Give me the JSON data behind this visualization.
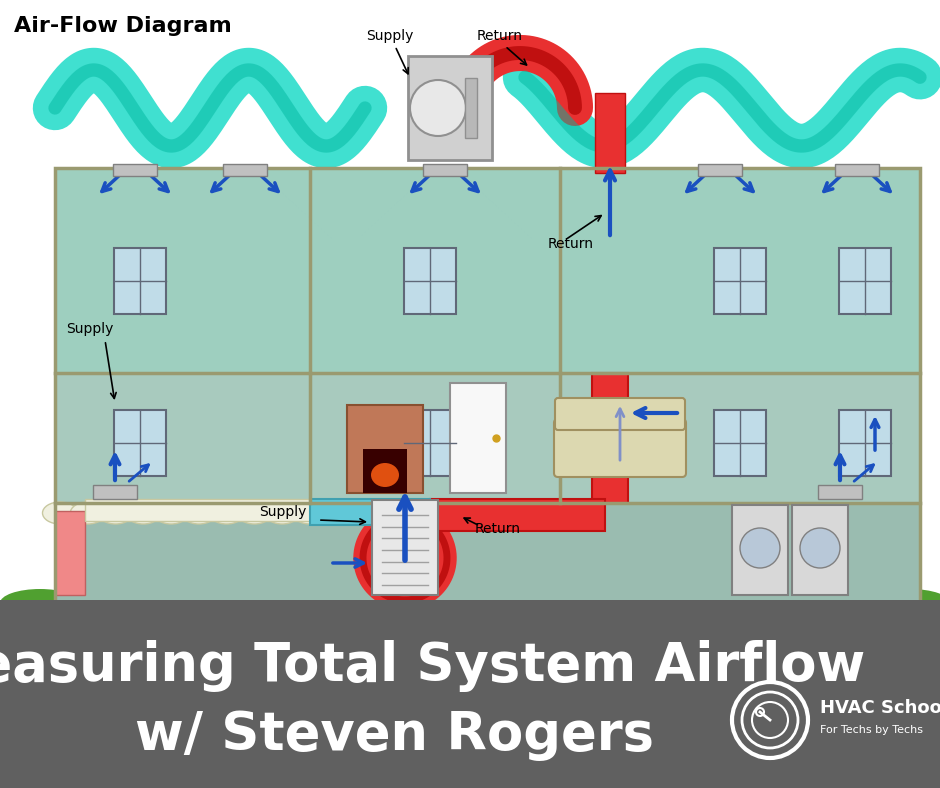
{
  "bg_color": "#ffffff",
  "bottom_panel_color": "#606060",
  "main_title_line1": "Measuring Total System Airflow",
  "main_title_line2": "w/ Steven Rogers",
  "main_title_color": "#ffffff",
  "main_title_fontsize": 38,
  "diagram_title": "Air-Flow Diagram",
  "diagram_title_color": "#000000",
  "diagram_title_fontsize": 16,
  "supply_duct_color": "#40e0d0",
  "supply_duct_dark": "#00b8a0",
  "return_duct_color": "#e83030",
  "return_duct_dark": "#c01010",
  "arrow_color": "#1a50c0",
  "wall_color": "#9a9a70",
  "upper_room_color": "#9ecfbf",
  "mid_room_color": "#a8c8b8",
  "basement_color": "#98c0b0",
  "ground_color": "#b08060",
  "grass_color": "#50a030",
  "logo_text": "HVAC School",
  "logo_subtext": "For Techs by Techs",
  "figure_width": 9.4,
  "figure_height": 7.88,
  "dpi": 100
}
